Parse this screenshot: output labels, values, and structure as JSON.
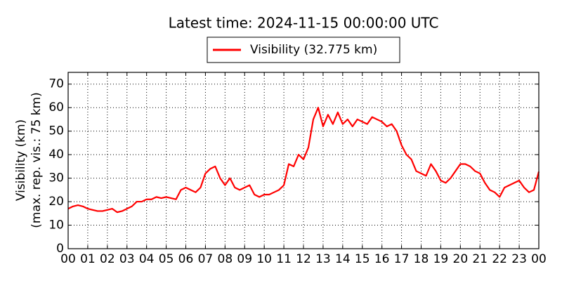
{
  "chart_data": {
    "type": "line",
    "title": "Latest time: 2024-11-15 00:00:00 UTC",
    "ylabel": [
      "Visibility (km)",
      "(max. rep. vis.: 75 km)"
    ],
    "x": [
      0,
      0.25,
      0.5,
      0.75,
      1,
      1.25,
      1.5,
      1.75,
      2,
      2.25,
      2.5,
      2.75,
      3,
      3.25,
      3.5,
      3.75,
      4,
      4.25,
      4.5,
      4.75,
      5,
      5.25,
      5.5,
      5.75,
      6,
      6.25,
      6.5,
      6.75,
      7,
      7.25,
      7.5,
      7.75,
      8,
      8.25,
      8.5,
      8.75,
      9,
      9.25,
      9.5,
      9.75,
      10,
      10.25,
      10.5,
      10.75,
      11,
      11.25,
      11.5,
      11.75,
      12,
      12.25,
      12.5,
      12.75,
      13,
      13.25,
      13.5,
      13.75,
      14,
      14.25,
      14.5,
      14.75,
      15,
      15.25,
      15.5,
      15.75,
      16,
      16.25,
      16.5,
      16.75,
      17,
      17.25,
      17.5,
      17.75,
      18,
      18.25,
      18.5,
      18.75,
      19,
      19.25,
      19.5,
      19.75,
      20,
      20.25,
      20.5,
      20.75,
      21,
      21.25,
      21.5,
      21.75,
      22,
      22.25,
      22.5,
      22.75,
      23,
      23.25,
      23.5,
      23.75,
      24
    ],
    "series": [
      {
        "name": "Visibility (32.775 km)",
        "color": "#ff0000",
        "values": [
          17,
          18,
          18.5,
          18,
          17,
          16.5,
          16,
          16,
          16.5,
          17,
          15.5,
          16,
          17,
          18,
          20,
          20,
          21,
          21,
          22,
          21.5,
          22,
          21.5,
          21,
          25,
          26,
          25,
          24,
          26,
          32,
          34,
          35,
          30,
          27,
          30,
          26,
          25,
          26,
          27,
          23,
          22,
          23,
          23,
          24,
          25,
          27,
          36,
          35,
          40,
          38,
          43,
          55,
          60,
          52,
          57,
          53,
          58,
          53,
          55,
          52,
          55,
          54,
          53,
          56,
          55,
          54,
          52,
          53,
          50,
          44,
          40,
          38,
          33,
          32,
          31,
          36,
          33,
          29,
          28,
          30,
          33,
          36,
          36,
          35,
          33,
          32,
          28,
          25,
          24,
          22,
          26,
          27,
          28,
          29,
          26,
          24,
          25,
          32.775
        ]
      }
    ],
    "xlim": [
      0,
      24
    ],
    "xticks": [
      {
        "value": 0,
        "label": "00"
      },
      {
        "value": 1,
        "label": "01"
      },
      {
        "value": 2,
        "label": "02"
      },
      {
        "value": 3,
        "label": "03"
      },
      {
        "value": 4,
        "label": "04"
      },
      {
        "value": 5,
        "label": "05"
      },
      {
        "value": 6,
        "label": "06"
      },
      {
        "value": 7,
        "label": "07"
      },
      {
        "value": 8,
        "label": "08"
      },
      {
        "value": 9,
        "label": "09"
      },
      {
        "value": 10,
        "label": "10"
      },
      {
        "value": 11,
        "label": "11"
      },
      {
        "value": 12,
        "label": "12"
      },
      {
        "value": 13,
        "label": "13"
      },
      {
        "value": 14,
        "label": "14"
      },
      {
        "value": 15,
        "label": "15"
      },
      {
        "value": 16,
        "label": "16"
      },
      {
        "value": 17,
        "label": "17"
      },
      {
        "value": 18,
        "label": "18"
      },
      {
        "value": 19,
        "label": "19"
      },
      {
        "value": 20,
        "label": "20"
      },
      {
        "value": 21,
        "label": "21"
      },
      {
        "value": 22,
        "label": "22"
      },
      {
        "value": 23,
        "label": "23"
      },
      {
        "value": 24,
        "label": "00"
      }
    ],
    "ylim": [
      0,
      75
    ],
    "yticks": [
      0,
      10,
      20,
      30,
      40,
      50,
      60,
      70
    ],
    "grid": true
  }
}
